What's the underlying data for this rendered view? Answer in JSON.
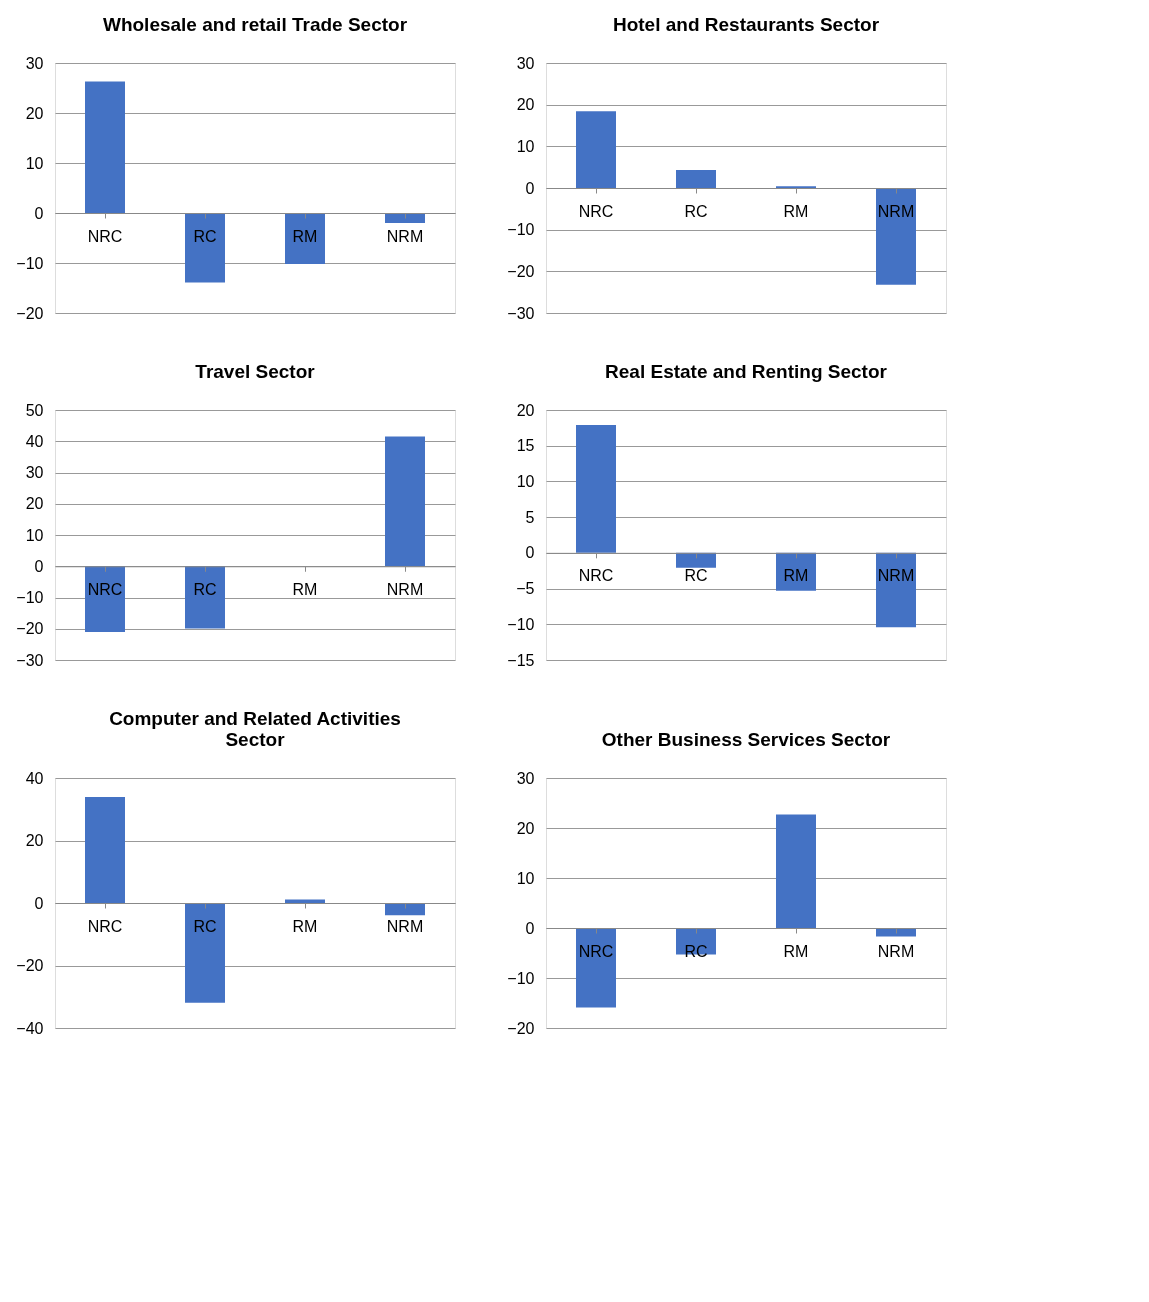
{
  "chart_data": [
    {
      "type": "bar",
      "title": "Wholesale and retail Trade Sector",
      "categories": [
        "NRC",
        "RC",
        "RM",
        "NRM"
      ],
      "values": [
        26.3,
        -13.9,
        -10.2,
        -2.0
      ],
      "color": "#4472c4",
      "ylim": [
        -20,
        30
      ],
      "yticks": [
        -20,
        -10,
        0,
        10,
        20,
        30
      ],
      "grid": "y"
    },
    {
      "type": "bar",
      "title": "Hotel and Restaurants Sector",
      "categories": [
        "NRC",
        "RC",
        "RM",
        "NRM"
      ],
      "values": [
        18.4,
        4.3,
        0.4,
        -23.2
      ],
      "color": "#4472c4",
      "ylim": [
        -30,
        30
      ],
      "yticks": [
        -30,
        -20,
        -10,
        0,
        10,
        20,
        30
      ],
      "grid": "y"
    },
    {
      "type": "bar",
      "title": "Travel Sector",
      "categories": [
        "NRC",
        "RC",
        "RM",
        "NRM"
      ],
      "values": [
        -21,
        -19.9,
        0,
        41.5
      ],
      "color": "#4472c4",
      "ylim": [
        -30,
        50
      ],
      "yticks": [
        -30,
        -20,
        -10,
        0,
        10,
        20,
        30,
        40,
        50
      ],
      "grid": "y"
    },
    {
      "type": "bar",
      "title": "Real Estate and Renting Sector",
      "categories": [
        "NRC",
        "RC",
        "RM",
        "NRM"
      ],
      "values": [
        17.9,
        -2.1,
        -5.3,
        -10.4
      ],
      "color": "#4472c4",
      "ylim": [
        -15,
        20
      ],
      "yticks": [
        -15,
        -10,
        -5,
        0,
        5,
        10,
        15,
        20
      ],
      "grid": "y"
    },
    {
      "type": "bar",
      "title": "Computer and Related Activities Sector",
      "categories": [
        "NRC",
        "RC",
        "RM",
        "NRM"
      ],
      "values": [
        33.9,
        -31.9,
        1.1,
        -3.9
      ],
      "color": "#4472c4",
      "ylim": [
        -40,
        40
      ],
      "yticks": [
        -40,
        -20,
        0,
        20,
        40
      ],
      "grid": "y"
    },
    {
      "type": "bar",
      "title": "Other Business Services Sector",
      "categories": [
        "NRC",
        "RC",
        "RM",
        "NRM"
      ],
      "values": [
        -15.9,
        -5.3,
        22.7,
        -1.7
      ],
      "color": "#4472c4",
      "ylim": [
        -20,
        30
      ],
      "yticks": [
        -20,
        -10,
        0,
        10,
        20,
        30
      ],
      "grid": "y"
    }
  ]
}
